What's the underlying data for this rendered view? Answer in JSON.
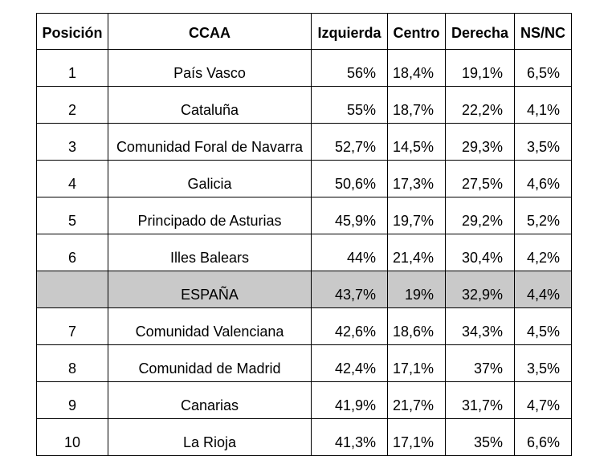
{
  "table": {
    "headers": {
      "posicion": "Posición",
      "ccaa": "CCAA",
      "izquierda": "Izquierda",
      "centro": "Centro",
      "derecha": "Derecha",
      "nsnc": "NS/NC"
    },
    "rows": [
      {
        "posicion": "1",
        "ccaa": "País Vasco",
        "izquierda": "56%",
        "centro": "18,4%",
        "derecha": "19,1%",
        "nsnc": "6,5%"
      },
      {
        "posicion": "2",
        "ccaa": "Cataluña",
        "izquierda": "55%",
        "centro": "18,7%",
        "derecha": "22,2%",
        "nsnc": "4,1%"
      },
      {
        "posicion": "3",
        "ccaa": "Comunidad Foral de Navarra",
        "izquierda": "52,7%",
        "centro": "14,5%",
        "derecha": "29,3%",
        "nsnc": "3,5%"
      },
      {
        "posicion": "4",
        "ccaa": "Galicia",
        "izquierda": "50,6%",
        "centro": "17,3%",
        "derecha": "27,5%",
        "nsnc": "4,6%"
      },
      {
        "posicion": "5",
        "ccaa": "Principado de Asturias",
        "izquierda": "45,9%",
        "centro": "19,7%",
        "derecha": "29,2%",
        "nsnc": "5,2%"
      },
      {
        "posicion": "6",
        "ccaa": "Illes Balears",
        "izquierda": "44%",
        "centro": "21,4%",
        "derecha": "30,4%",
        "nsnc": "4,2%"
      },
      {
        "posicion": "",
        "ccaa": "ESPAÑA",
        "izquierda": "43,7%",
        "centro": "19%",
        "derecha": "32,9%",
        "nsnc": "4,4%",
        "highlight": true
      },
      {
        "posicion": "7",
        "ccaa": "Comunidad Valenciana",
        "izquierda": "42,6%",
        "centro": "18,6%",
        "derecha": "34,3%",
        "nsnc": "4,5%"
      },
      {
        "posicion": "8",
        "ccaa": "Comunidad de Madrid",
        "izquierda": "42,4%",
        "centro": "17,1%",
        "derecha": "37%",
        "nsnc": "3,5%"
      },
      {
        "posicion": "9",
        "ccaa": "Canarias",
        "izquierda": "41,9%",
        "centro": "21,7%",
        "derecha": "31,7%",
        "nsnc": "4,7%"
      },
      {
        "posicion": "10",
        "ccaa": "La Rioja",
        "izquierda": "41,3%",
        "centro": "17,1%",
        "derecha": "35%",
        "nsnc": "6,6%"
      }
    ],
    "highlight_color": "#c9c9c9"
  }
}
